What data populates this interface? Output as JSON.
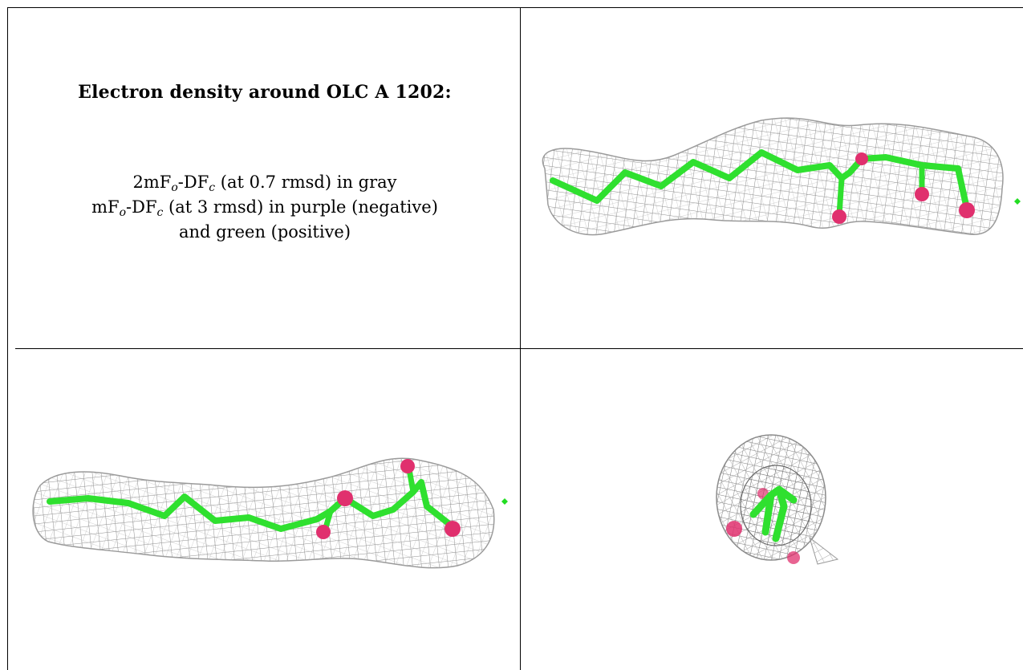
{
  "caption": {
    "title": "Electron density around OLC A 1202:",
    "line1": {
      "a": "2mF",
      "sub1": "o",
      "b": "-DF",
      "sub2": "c",
      "c": " (at 0.7 rmsd) in gray"
    },
    "line2": {
      "a": "mF",
      "sub1": "o",
      "b": "-DF",
      "sub2": "c",
      "c": " (at 3 rmsd) in purple (negative)"
    },
    "line3": "and green (positive)"
  },
  "panels": [
    {
      "view": "side-view-top"
    },
    {
      "view": "side-view-bottom"
    },
    {
      "view": "end-on-view"
    }
  ],
  "colors": {
    "mesh": "#8e8e8e",
    "carbon_stick": "#2fe02f",
    "oxygen_atom": "#e0306e",
    "positive_density": "#22dd22",
    "border": "#000000"
  }
}
